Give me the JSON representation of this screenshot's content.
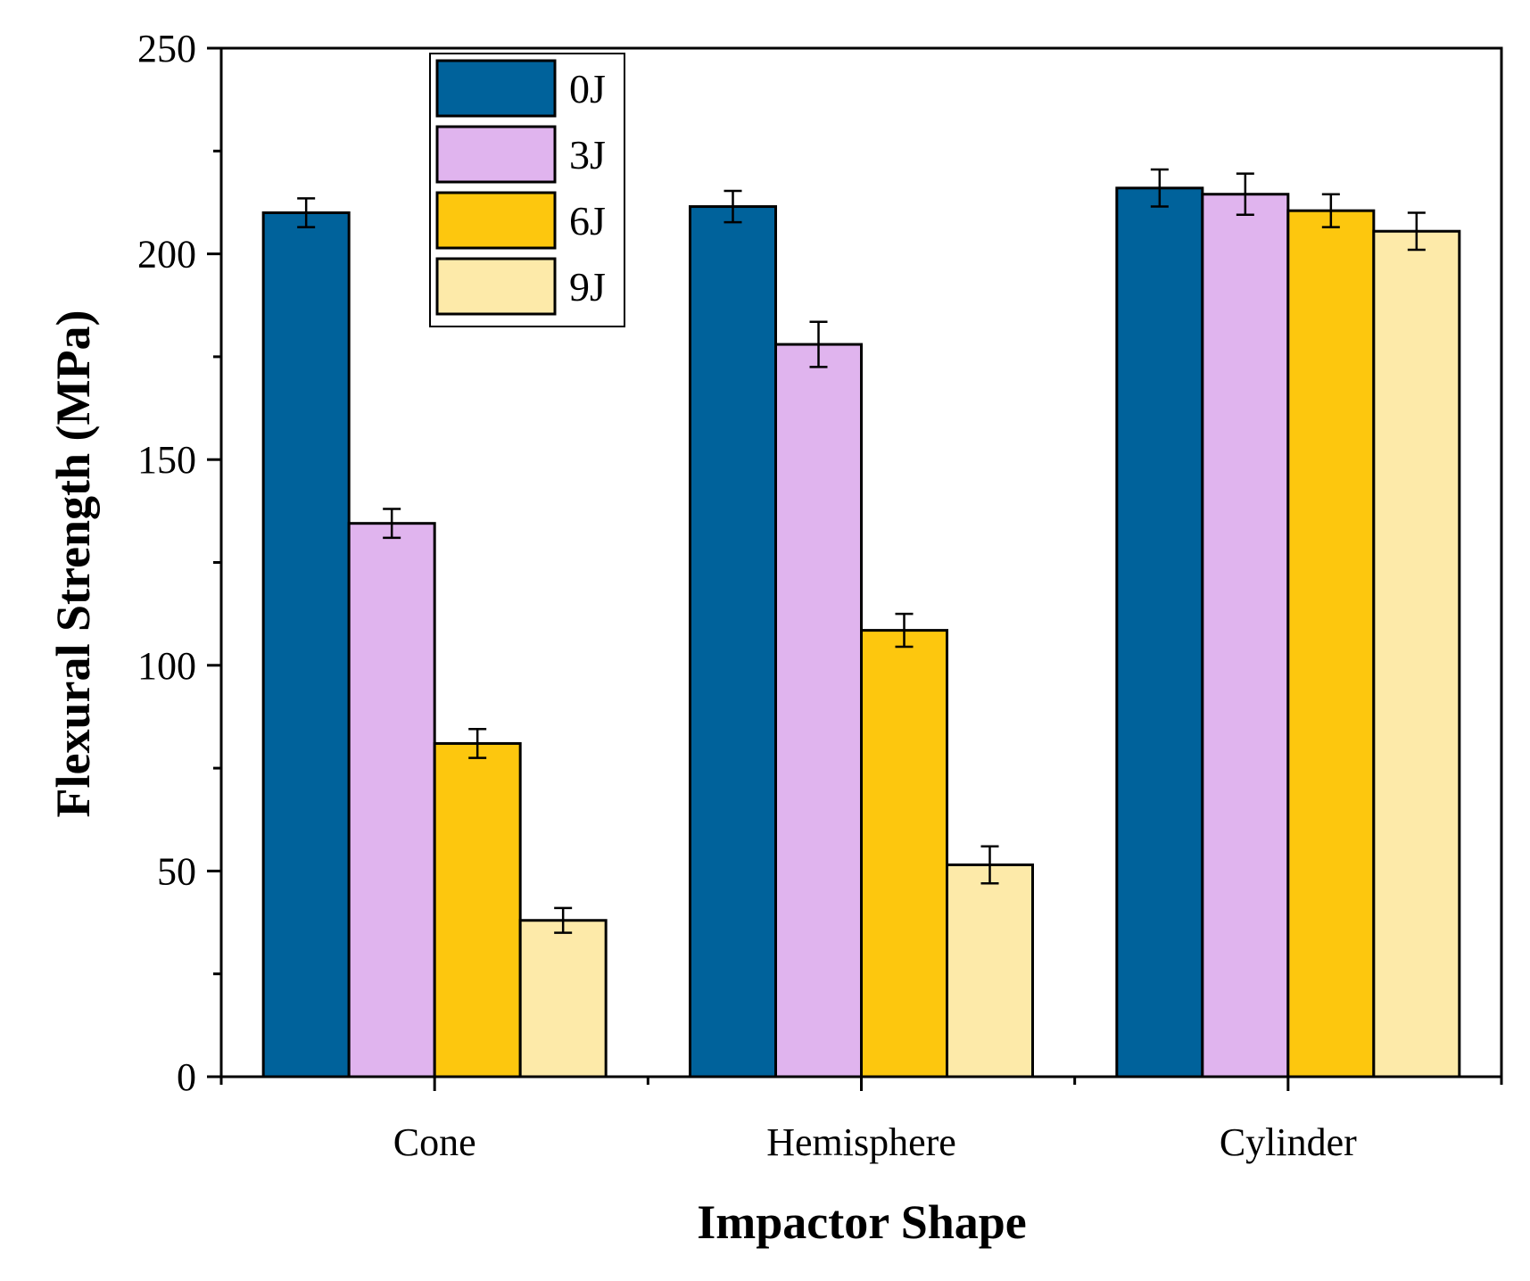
{
  "chart_data": {
    "type": "bar",
    "title": "",
    "xlabel": "Impactor Shape",
    "ylabel": "Flexural Strength (MPa)",
    "ylim": [
      0,
      250
    ],
    "yticks": [
      "0",
      "50",
      "100",
      "150",
      "200",
      "250"
    ],
    "grid": false,
    "legend_position": "top-left",
    "categories": [
      "Cone",
      "Hemisphere",
      "Cylinder"
    ],
    "series": [
      {
        "name": "0J",
        "color": "#00629b",
        "values": [
          210,
          211.5,
          216
        ],
        "errors": [
          3.5,
          3.8,
          4.5
        ]
      },
      {
        "name": "3J",
        "color": "#e0b4ee",
        "values": [
          134.5,
          178,
          214.5
        ],
        "errors": [
          3.5,
          5.5,
          5
        ]
      },
      {
        "name": "6J",
        "color": "#fdc70e",
        "values": [
          81,
          108.5,
          210.5
        ],
        "errors": [
          3.5,
          4,
          4
        ]
      },
      {
        "name": "9J",
        "color": "#fdeaa9",
        "values": [
          38,
          51.5,
          205.5
        ],
        "errors": [
          3,
          4.5,
          4.5
        ]
      }
    ]
  }
}
